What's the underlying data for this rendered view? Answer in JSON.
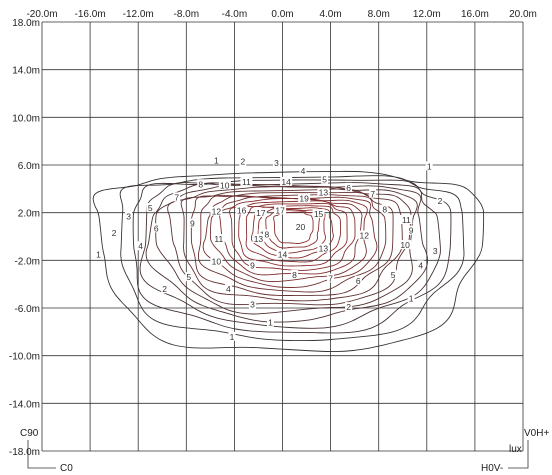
{
  "diagram": {
    "type": "isolux-contour",
    "x_ticks": [
      "-20.0m",
      "-16.0m",
      "-12.0m",
      "-8.0m",
      "-4.0m",
      "0.0m",
      "4.0m",
      "8.0m",
      "12.0m",
      "16.0m",
      "20.0m"
    ],
    "y_ticks": [
      "18.0m",
      "14.0m",
      "10.0m",
      "6.0m",
      "2.0m",
      "-2.0m",
      "-6.0m",
      "-10.0m",
      "-14.0m",
      "-18.0m"
    ],
    "corner_labels": {
      "c90": "C90",
      "c0": "C0",
      "v0h": "V0H+",
      "lux": "lux",
      "h0v": "H0V-"
    },
    "x_range": [
      -20,
      20
    ],
    "y_range": [
      -18,
      18
    ],
    "grid": true,
    "line_colors": {
      "outer": "#333333",
      "inner": "#8b2e2e",
      "grid": "#333333"
    },
    "contour_levels": [
      1,
      2,
      3,
      4,
      5,
      6,
      7,
      8,
      9,
      10,
      11,
      12,
      13,
      14,
      15,
      16,
      17,
      18,
      19,
      20
    ],
    "contour_labels": [
      {
        "text": "1",
        "x": -5.5,
        "y": 6.3,
        "c": "#333333"
      },
      {
        "text": "2",
        "x": -3.3,
        "y": 6.2,
        "c": "#333333"
      },
      {
        "text": "3",
        "x": -0.5,
        "y": 6.1,
        "c": "#333333"
      },
      {
        "text": "4",
        "x": 1.7,
        "y": 5.4,
        "c": "#333333"
      },
      {
        "text": "5",
        "x": 3.5,
        "y": 4.7,
        "c": "#333333"
      },
      {
        "text": "6",
        "x": 5.5,
        "y": 4.0,
        "c": "#333333"
      },
      {
        "text": "7",
        "x": 7.5,
        "y": 3.5,
        "c": "#333333"
      },
      {
        "text": "8",
        "x": 8.5,
        "y": 2.2,
        "c": "#333333"
      },
      {
        "text": "1",
        "x": 12.2,
        "y": 5.8,
        "c": "#333333"
      },
      {
        "text": "2",
        "x": 13.1,
        "y": 2.9,
        "c": "#333333"
      },
      {
        "text": "3",
        "x": 12.7,
        "y": -1.3,
        "c": "#333333"
      },
      {
        "text": "4",
        "x": 11.5,
        "y": -2.5,
        "c": "#333333"
      },
      {
        "text": "5",
        "x": 9.2,
        "y": -3.3,
        "c": "#333333"
      },
      {
        "text": "6",
        "x": 6.3,
        "y": -3.8,
        "c": "#333333"
      },
      {
        "text": "7",
        "x": 4.0,
        "y": -3.6,
        "c": "#333333"
      },
      {
        "text": "8",
        "x": 1.0,
        "y": -3.3,
        "c": "#333333"
      },
      {
        "text": "9",
        "x": -2.5,
        "y": -2.5,
        "c": "#333333"
      },
      {
        "text": "10",
        "x": -5.5,
        "y": -2.2,
        "c": "#333333"
      },
      {
        "text": "10",
        "x": 10.2,
        "y": -0.8,
        "c": "#333333"
      },
      {
        "text": "9",
        "x": 10.7,
        "y": 0.4,
        "c": "#333333"
      },
      {
        "text": "11",
        "x": 10.3,
        "y": 1.3,
        "c": "#333333"
      },
      {
        "text": "12",
        "x": 6.8,
        "y": 0.0,
        "c": "#333333"
      },
      {
        "text": "13",
        "x": 3.4,
        "y": -1.1,
        "c": "#333333"
      },
      {
        "text": "14",
        "x": 0.0,
        "y": -1.6,
        "c": "#333333"
      },
      {
        "text": "15",
        "x": 3.0,
        "y": 1.8,
        "c": "#333333"
      },
      {
        "text": "20",
        "x": 1.5,
        "y": 0.7,
        "c": "#333333"
      },
      {
        "text": "19",
        "x": 1.8,
        "y": 3.1,
        "c": "#333333"
      },
      {
        "text": "13",
        "x": 3.4,
        "y": 3.6,
        "c": "#333333"
      },
      {
        "text": "14",
        "x": 0.3,
        "y": 4.5,
        "c": "#333333"
      },
      {
        "text": "17",
        "x": -0.2,
        "y": 2.1,
        "c": "#333333"
      },
      {
        "text": "17",
        "x": -1.8,
        "y": 1.9,
        "c": "#333333"
      },
      {
        "text": "16",
        "x": -3.4,
        "y": 2.1,
        "c": "#333333"
      },
      {
        "text": "18",
        "x": -1.5,
        "y": 0.1,
        "c": "#333333"
      },
      {
        "text": "13",
        "x": -2.0,
        "y": -0.3,
        "c": "#333333"
      },
      {
        "text": "12",
        "x": -5.5,
        "y": 2.0,
        "c": "#333333"
      },
      {
        "text": "11",
        "x": -5.3,
        "y": -0.3,
        "c": "#333333"
      },
      {
        "text": "11",
        "x": -3.0,
        "y": 4.5,
        "c": "#333333"
      },
      {
        "text": "10",
        "x": -4.8,
        "y": 4.2,
        "c": "#333333"
      },
      {
        "text": "8",
        "x": -6.8,
        "y": 4.3,
        "c": "#333333"
      },
      {
        "text": "7",
        "x": -8.8,
        "y": 3.2,
        "c": "#333333"
      },
      {
        "text": "9",
        "x": -7.5,
        "y": 1.0,
        "c": "#333333"
      },
      {
        "text": "6",
        "x": -10.5,
        "y": 0.6,
        "c": "#333333"
      },
      {
        "text": "5",
        "x": -11.0,
        "y": 2.3,
        "c": "#333333"
      },
      {
        "text": "4",
        "x": -11.8,
        "y": -0.9,
        "c": "#333333"
      },
      {
        "text": "3",
        "x": -12.8,
        "y": 1.6,
        "c": "#333333"
      },
      {
        "text": "2",
        "x": -14.0,
        "y": 0.2,
        "c": "#333333"
      },
      {
        "text": "1",
        "x": -15.3,
        "y": -1.6,
        "c": "#333333"
      },
      {
        "text": "5",
        "x": -7.8,
        "y": -3.5,
        "c": "#333333"
      },
      {
        "text": "4",
        "x": -4.5,
        "y": -4.5,
        "c": "#333333"
      },
      {
        "text": "2",
        "x": -9.8,
        "y": -4.5,
        "c": "#333333"
      },
      {
        "text": "3",
        "x": -2.5,
        "y": -5.8,
        "c": "#333333"
      },
      {
        "text": "2",
        "x": 5.5,
        "y": -6.0,
        "c": "#333333"
      },
      {
        "text": "1",
        "x": 10.7,
        "y": -5.3,
        "c": "#333333"
      },
      {
        "text": "1",
        "x": -1.0,
        "y": -7.3,
        "c": "#333333"
      },
      {
        "text": "1",
        "x": -4.2,
        "y": -8.5,
        "c": "#333333"
      }
    ]
  }
}
